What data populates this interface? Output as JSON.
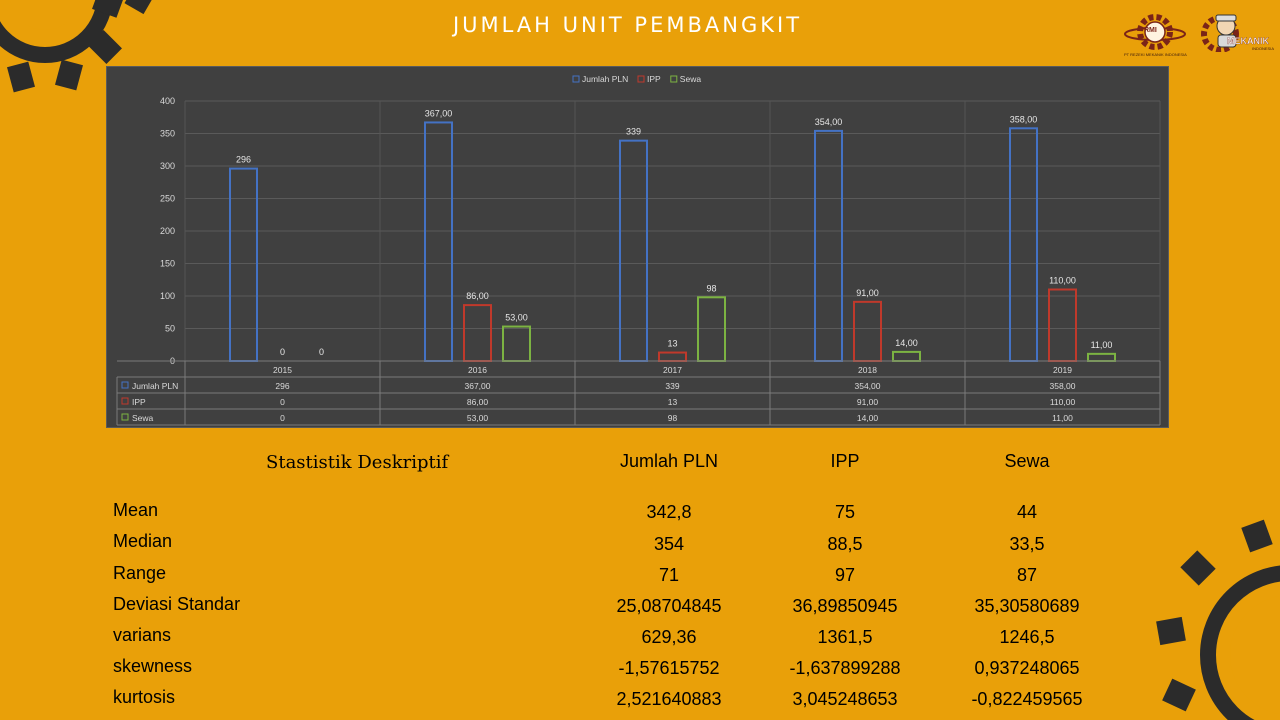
{
  "slide": {
    "title": "JUMLAH UNIT PEMBANGKIT",
    "logos": [
      {
        "name": "RMI",
        "text": "RMI",
        "caption": "PT REZEKI MEKANIK INDONESIA"
      },
      {
        "name": "Mekanik",
        "text": "MEKANIK",
        "caption": "INDONESIA"
      }
    ]
  },
  "chart_data": {
    "type": "bar",
    "categories": [
      "2015",
      "2016",
      "2017",
      "2018",
      "2019"
    ],
    "series": [
      {
        "name": "Jumlah PLN",
        "color": "#4472C4",
        "values": [
          296,
          367,
          339,
          354,
          358
        ],
        "labels": [
          "296",
          "367,00",
          "339",
          "354,00",
          "358,00"
        ]
      },
      {
        "name": "IPP",
        "color": "#C0392B",
        "values": [
          0,
          86,
          13,
          91,
          110
        ],
        "labels": [
          "0",
          "86,00",
          "13",
          "91,00",
          "110,00"
        ]
      },
      {
        "name": "Sewa",
        "color": "#7CB342",
        "values": [
          0,
          53,
          98,
          14,
          11
        ],
        "labels": [
          "0",
          "53,00",
          "98",
          "14,00",
          "11,00"
        ]
      }
    ],
    "yticks": [
      "0",
      "50",
      "100",
      "150",
      "200",
      "250",
      "300",
      "350",
      "400"
    ],
    "ylim": [
      0,
      400
    ],
    "legend_position": "top-center",
    "data_table": true,
    "grid": true
  },
  "stats": {
    "title": "Stastistik Deskriptif",
    "columns": [
      "Jumlah PLN",
      "IPP",
      "Sewa"
    ],
    "rows": [
      {
        "label": "Mean",
        "values": [
          "342,8",
          "75",
          "44"
        ]
      },
      {
        "label": "Median",
        "values": [
          "354",
          "88,5",
          "33,5"
        ]
      },
      {
        "label": "Range",
        "values": [
          "71",
          "97",
          "87"
        ]
      },
      {
        "label": "Deviasi Standar",
        "values": [
          "25,08704845",
          "36,89850945",
          "35,30580689"
        ]
      },
      {
        "label": "varians",
        "values": [
          "629,36",
          "1361,5",
          "1246,5"
        ]
      },
      {
        "label": "skewness",
        "values": [
          "-1,57615752",
          "-1,637899288",
          "0,937248065"
        ]
      },
      {
        "label": "kurtosis",
        "values": [
          "2,521640883",
          "3,045248653",
          "-0,822459565"
        ]
      }
    ]
  }
}
